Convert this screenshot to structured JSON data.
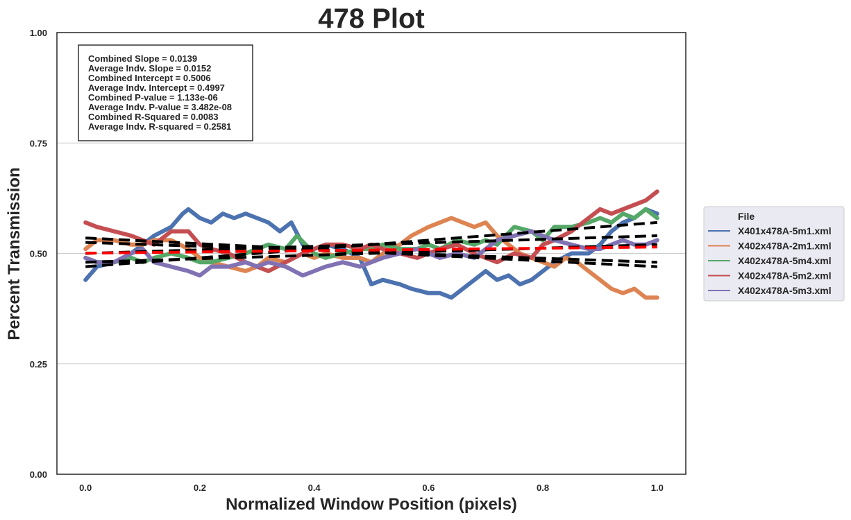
{
  "chart_data": {
    "type": "line",
    "title": "478 Plot",
    "xlabel": "Normalized Window Position (pixels)",
    "ylabel": "Percent Transmission",
    "xlim": [
      -0.05,
      1.05
    ],
    "ylim": [
      0.0,
      1.0
    ],
    "xticks": [
      0.0,
      0.2,
      0.4,
      0.6,
      0.8,
      1.0
    ],
    "xtick_labels": [
      "0.0",
      "0.2",
      "0.4",
      "0.6",
      "0.8",
      "1.0"
    ],
    "yticks": [
      0.0,
      0.25,
      0.5,
      0.75,
      1.0
    ],
    "ytick_labels": [
      "0.00",
      "0.25",
      "0.50",
      "0.75",
      "1.00"
    ],
    "grid": "horizontal",
    "stats_box": [
      "Combined Slope = 0.0139",
      "Average Indv. Slope = 0.0152",
      "Combined Intercept = 0.5006",
      "Average Indv. Intercept = 0.4997",
      "Combined P-value = 1.133e-06",
      "Average Indv. P-value = 3.482e-08",
      "Combined R-Squared = 0.0083",
      "Average Indv. R-squared = 0.2581"
    ],
    "legend": {
      "title": "File",
      "placement": "center-right outside"
    },
    "series": [
      {
        "name": "X401x478A-5m1.xml",
        "color": "#4c72b0",
        "x": [
          0.0,
          0.02,
          0.05,
          0.08,
          0.1,
          0.12,
          0.15,
          0.17,
          0.18,
          0.2,
          0.22,
          0.24,
          0.26,
          0.28,
          0.3,
          0.32,
          0.34,
          0.36,
          0.38,
          0.4,
          0.42,
          0.45,
          0.48,
          0.5,
          0.52,
          0.55,
          0.57,
          0.6,
          0.62,
          0.64,
          0.66,
          0.68,
          0.7,
          0.72,
          0.74,
          0.76,
          0.78,
          0.8,
          0.82,
          0.85,
          0.88,
          0.9,
          0.92,
          0.94,
          0.96,
          0.98,
          1.0
        ],
        "y": [
          0.44,
          0.47,
          0.48,
          0.5,
          0.52,
          0.54,
          0.56,
          0.59,
          0.6,
          0.58,
          0.57,
          0.59,
          0.58,
          0.59,
          0.58,
          0.57,
          0.55,
          0.57,
          0.52,
          0.51,
          0.52,
          0.51,
          0.49,
          0.43,
          0.44,
          0.43,
          0.42,
          0.41,
          0.41,
          0.4,
          0.42,
          0.44,
          0.46,
          0.44,
          0.45,
          0.43,
          0.44,
          0.46,
          0.48,
          0.5,
          0.5,
          0.52,
          0.55,
          0.57,
          0.58,
          0.6,
          0.59
        ]
      },
      {
        "name": "X402x478A-2m1.xml",
        "color": "#dd8452",
        "x": [
          0.0,
          0.02,
          0.05,
          0.08,
          0.1,
          0.12,
          0.15,
          0.18,
          0.2,
          0.22,
          0.25,
          0.28,
          0.3,
          0.32,
          0.35,
          0.38,
          0.4,
          0.42,
          0.45,
          0.48,
          0.5,
          0.52,
          0.55,
          0.57,
          0.6,
          0.62,
          0.64,
          0.66,
          0.68,
          0.7,
          0.72,
          0.74,
          0.76,
          0.78,
          0.8,
          0.82,
          0.84,
          0.86,
          0.88,
          0.9,
          0.92,
          0.94,
          0.96,
          0.98,
          1.0
        ],
        "y": [
          0.51,
          0.53,
          0.53,
          0.52,
          0.52,
          0.53,
          0.53,
          0.51,
          0.49,
          0.48,
          0.47,
          0.46,
          0.47,
          0.49,
          0.48,
          0.5,
          0.49,
          0.5,
          0.49,
          0.49,
          0.48,
          0.5,
          0.52,
          0.54,
          0.56,
          0.57,
          0.58,
          0.57,
          0.56,
          0.57,
          0.54,
          0.52,
          0.5,
          0.49,
          0.48,
          0.47,
          0.49,
          0.48,
          0.46,
          0.44,
          0.42,
          0.41,
          0.42,
          0.4,
          0.4
        ]
      },
      {
        "name": "X402x478A-5m4.xml",
        "color": "#55a868",
        "x": [
          0.0,
          0.02,
          0.05,
          0.08,
          0.1,
          0.12,
          0.15,
          0.18,
          0.2,
          0.22,
          0.25,
          0.28,
          0.3,
          0.32,
          0.35,
          0.37,
          0.4,
          0.42,
          0.45,
          0.48,
          0.5,
          0.52,
          0.55,
          0.58,
          0.6,
          0.62,
          0.65,
          0.68,
          0.7,
          0.72,
          0.75,
          0.78,
          0.8,
          0.82,
          0.85,
          0.88,
          0.9,
          0.92,
          0.94,
          0.96,
          0.98,
          1.0
        ],
        "y": [
          0.49,
          0.48,
          0.48,
          0.49,
          0.48,
          0.49,
          0.5,
          0.49,
          0.48,
          0.48,
          0.49,
          0.5,
          0.51,
          0.52,
          0.51,
          0.54,
          0.5,
          0.49,
          0.5,
          0.51,
          0.51,
          0.52,
          0.51,
          0.51,
          0.52,
          0.51,
          0.53,
          0.52,
          0.53,
          0.52,
          0.56,
          0.55,
          0.53,
          0.56,
          0.56,
          0.57,
          0.58,
          0.57,
          0.59,
          0.58,
          0.6,
          0.58
        ]
      },
      {
        "name": "X402x478A-5m2.xml",
        "color": "#c44e52",
        "x": [
          0.0,
          0.02,
          0.05,
          0.08,
          0.1,
          0.12,
          0.15,
          0.18,
          0.2,
          0.22,
          0.25,
          0.28,
          0.3,
          0.32,
          0.35,
          0.38,
          0.4,
          0.42,
          0.45,
          0.48,
          0.5,
          0.52,
          0.55,
          0.58,
          0.6,
          0.62,
          0.65,
          0.68,
          0.7,
          0.72,
          0.75,
          0.78,
          0.8,
          0.82,
          0.85,
          0.88,
          0.9,
          0.92,
          0.94,
          0.96,
          0.98,
          1.0
        ],
        "y": [
          0.57,
          0.56,
          0.55,
          0.54,
          0.53,
          0.52,
          0.55,
          0.55,
          0.52,
          0.51,
          0.5,
          0.48,
          0.47,
          0.46,
          0.48,
          0.5,
          0.51,
          0.52,
          0.52,
          0.51,
          0.52,
          0.51,
          0.5,
          0.49,
          0.5,
          0.51,
          0.52,
          0.5,
          0.49,
          0.48,
          0.5,
          0.49,
          0.52,
          0.53,
          0.55,
          0.58,
          0.6,
          0.59,
          0.6,
          0.61,
          0.62,
          0.64
        ]
      },
      {
        "name": "X402x478A-5m3.xml",
        "color": "#8172b3",
        "x": [
          0.0,
          0.02,
          0.05,
          0.08,
          0.1,
          0.12,
          0.15,
          0.18,
          0.2,
          0.22,
          0.25,
          0.28,
          0.3,
          0.32,
          0.35,
          0.38,
          0.4,
          0.42,
          0.45,
          0.48,
          0.5,
          0.52,
          0.55,
          0.58,
          0.6,
          0.62,
          0.65,
          0.68,
          0.7,
          0.72,
          0.75,
          0.78,
          0.8,
          0.82,
          0.85,
          0.88,
          0.9,
          0.92,
          0.94,
          0.96,
          0.98,
          1.0
        ],
        "y": [
          0.49,
          0.48,
          0.48,
          0.5,
          0.51,
          0.48,
          0.47,
          0.46,
          0.45,
          0.47,
          0.47,
          0.48,
          0.47,
          0.48,
          0.47,
          0.45,
          0.46,
          0.47,
          0.48,
          0.47,
          0.48,
          0.49,
          0.5,
          0.51,
          0.5,
          0.49,
          0.5,
          0.49,
          0.51,
          0.53,
          0.54,
          0.55,
          0.54,
          0.53,
          0.52,
          0.51,
          0.51,
          0.52,
          0.53,
          0.52,
          0.52,
          0.53
        ]
      }
    ],
    "fit_lines": [
      {
        "style": "black-dashed",
        "x": [
          0.0,
          1.0
        ],
        "y": [
          0.47,
          0.57
        ]
      },
      {
        "style": "black-dashed",
        "x": [
          0.0,
          1.0
        ],
        "y": [
          0.5,
          0.54
        ]
      },
      {
        "style": "black-dashed",
        "x": [
          0.0,
          1.0
        ],
        "y": [
          0.535,
          0.47
        ]
      },
      {
        "style": "black-dashed",
        "x": [
          0.0,
          1.0
        ],
        "y": [
          0.525,
          0.48
        ]
      },
      {
        "style": "black-dashed",
        "x": [
          0.0,
          1.0
        ],
        "y": [
          0.48,
          0.52
        ]
      },
      {
        "style": "red-dashed",
        "x": [
          0.0,
          1.0
        ],
        "y": [
          0.5006,
          0.5145
        ]
      }
    ]
  }
}
